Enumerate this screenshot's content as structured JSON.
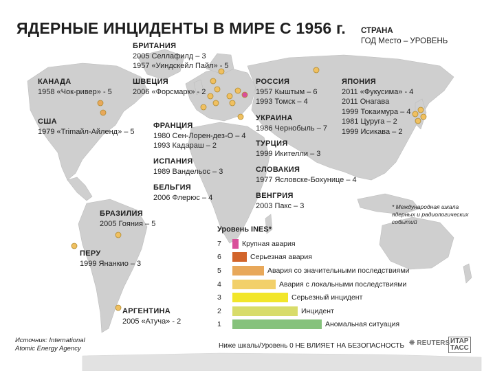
{
  "title": "ЯДЕРНЫЕ ИНЦИДЕНТЫ В МИРЕ С 1956 г.",
  "key": {
    "line1": "СТРАНА",
    "line2": "ГОД Место – УРОВЕНЬ"
  },
  "countries": {
    "britain": {
      "name": "БРИТАНИЯ",
      "rows": [
        "2005 Селлафилд – 3",
        "1957 «Уиндскейл Пайл» - 5"
      ]
    },
    "sweden": {
      "name": "ШВЕЦИЯ",
      "rows": [
        "2006 «Форсмарк» - 2"
      ]
    },
    "russia": {
      "name": "РОССИЯ",
      "rows": [
        "1957 Кыштым – 6",
        "1993 Томск – 4"
      ]
    },
    "japan": {
      "name": "ЯПОНИЯ",
      "rows": [
        "2011 «Фукусима» - 4",
        "2011 Онагава",
        "1999 Токаимура – 4",
        "1981 Цуруга – 2",
        "1999 Исикава – 2"
      ]
    },
    "canada": {
      "name": "КАНАДА",
      "rows": [
        "1958 «Чок-ривер» - 5"
      ]
    },
    "usa": {
      "name": "США",
      "rows": [
        "1979 «Trimaйл-Айленд» – 5"
      ]
    },
    "ukraine": {
      "name": "УКРАИНА",
      "rows": [
        "1986 Чернобыль – 7"
      ]
    },
    "turkey": {
      "name": "ТУРЦИЯ",
      "rows": [
        "1999 Икителли – 3"
      ]
    },
    "slovakia": {
      "name": "СЛОВАКИЯ",
      "rows": [
        "1977 Ясловске-Бохунице – 4"
      ]
    },
    "hungary": {
      "name": "ВЕНГРИЯ",
      "rows": [
        "2003 Пакс – 3"
      ]
    },
    "france": {
      "name": "ФРАНЦИЯ",
      "rows": [
        "1980 Сен-Лорен-дез-О – 4",
        "1993 Кадараш – 2"
      ]
    },
    "spain": {
      "name": "ИСПАНИЯ",
      "rows": [
        "1989 Вандельос – 3"
      ]
    },
    "belgium": {
      "name": "БЕЛЬГИЯ",
      "rows": [
        "2006 Флерюс – 4"
      ]
    },
    "brazil": {
      "name": "БРАЗИЛИЯ",
      "rows": [
        "2005 Гояния – 5"
      ]
    },
    "peru": {
      "name": "ПЕРУ",
      "rows": [
        "1999 Янанкио – 3"
      ]
    },
    "argentina": {
      "name": "АРГЕНТИНА",
      "rows": [
        "2005 «Атуча» - 2"
      ]
    }
  },
  "ines": {
    "title": "Уровень INES*",
    "levels": [
      {
        "n": "7",
        "label": "Крупная авария",
        "color": "#d94f9a",
        "frac": 0.04
      },
      {
        "n": "6",
        "label": "Серьезная авария",
        "color": "#d2642a",
        "frac": 0.09
      },
      {
        "n": "5",
        "label": "Авария со значительными последствиями",
        "color": "#e8a85a",
        "frac": 0.2
      },
      {
        "n": "4",
        "label": "Авария с локальными последствиями",
        "color": "#f2d06a",
        "frac": 0.27
      },
      {
        "n": "3",
        "label": "Серьезный инцидент",
        "color": "#f2e62a",
        "frac": 0.35
      },
      {
        "n": "2",
        "label": "Инцидент",
        "color": "#d8dc6a",
        "frac": 0.41
      },
      {
        "n": "1",
        "label": "Аномальная ситуация",
        "color": "#86c27c",
        "frac": 0.56
      }
    ]
  },
  "footnote": "* Международная шкала ядерных и радиологических событий",
  "source": {
    "line1": "Источник: International",
    "line2": "Atomic Energy Agency"
  },
  "bottom_note": "Ниже шкалы/Уровень 0 НЕ ВЛИЯЕТ НА БЕЗОПАСНОСТЬ",
  "logos": {
    "reuters": "REUTERS",
    "tass_top": "ИТАР",
    "tass_bottom": "ТАСС"
  },
  "colors": {
    "land": "#cfcfcf",
    "dot": "#f0c060",
    "dot_pink": "#d94f9a"
  }
}
